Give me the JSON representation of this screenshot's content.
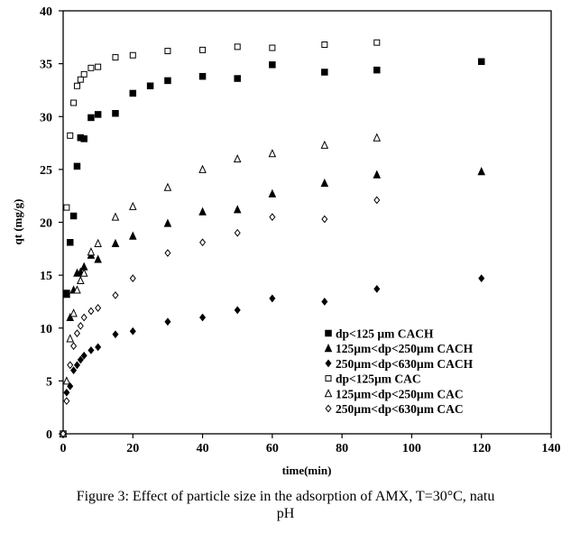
{
  "chart_data": {
    "type": "scatter",
    "title": "",
    "xlabel": "time(min)",
    "ylabel": "qt (mg/g)",
    "xlim": [
      0,
      140
    ],
    "ylim": [
      0,
      40
    ],
    "xticks": [
      "0",
      "20",
      "40",
      "60",
      "80",
      "100",
      "120",
      "140"
    ],
    "yticks": [
      "0",
      "5",
      "10",
      "15",
      "20",
      "25",
      "30",
      "35",
      "40"
    ],
    "grid": false,
    "legend_position": "bottom-right",
    "series": [
      {
        "name": "dp<125 µm CACH",
        "marker": "square-filled",
        "x": [
          0,
          1,
          2,
          3,
          4,
          5,
          6,
          8,
          10,
          15,
          20,
          25,
          30,
          40,
          50,
          60,
          75,
          90,
          120
        ],
        "y": [
          0,
          13.3,
          18.1,
          20.6,
          25.3,
          28.0,
          27.9,
          29.9,
          30.2,
          30.3,
          32.2,
          32.9,
          33.4,
          33.8,
          33.6,
          34.9,
          34.2,
          34.4,
          35.2
        ]
      },
      {
        "name": "125µm<dp<250µm CACH",
        "marker": "triangle-filled",
        "x": [
          0,
          1,
          2,
          3,
          4,
          5,
          6,
          8,
          10,
          15,
          20,
          30,
          40,
          50,
          60,
          75,
          90,
          120
        ],
        "y": [
          0,
          13.2,
          11.0,
          13.6,
          15.2,
          15.3,
          15.8,
          16.9,
          16.5,
          18.0,
          18.7,
          19.9,
          21.0,
          21.2,
          22.7,
          23.7,
          24.5,
          24.8
        ]
      },
      {
        "name": "250µm<dp<630µm CACH",
        "marker": "diamond-filled",
        "x": [
          0,
          1,
          2,
          3,
          4,
          5,
          6,
          8,
          10,
          15,
          20,
          30,
          40,
          50,
          60,
          75,
          90,
          120
        ],
        "y": [
          0,
          3.9,
          4.5,
          6.0,
          6.5,
          7.0,
          7.4,
          7.9,
          8.2,
          9.4,
          9.7,
          10.6,
          11.0,
          11.7,
          12.8,
          12.5,
          13.7,
          14.7
        ]
      },
      {
        "name": "dp<125µm CAC",
        "marker": "square-open",
        "x": [
          0,
          1,
          2,
          3,
          4,
          5,
          6,
          8,
          10,
          15,
          20,
          30,
          40,
          50,
          60,
          75,
          90
        ],
        "y": [
          0,
          21.4,
          28.2,
          31.3,
          32.9,
          33.5,
          34.0,
          34.6,
          34.7,
          35.6,
          35.8,
          36.2,
          36.3,
          36.6,
          36.5,
          36.8,
          37.0
        ]
      },
      {
        "name": "125µm<dp<250µm CAC",
        "marker": "triangle-open",
        "x": [
          0,
          1,
          2,
          3,
          4,
          5,
          6,
          8,
          10,
          15,
          20,
          30,
          40,
          50,
          60,
          75,
          90
        ],
        "y": [
          0,
          5.0,
          9.0,
          11.4,
          13.6,
          14.5,
          15.2,
          17.2,
          18.0,
          20.5,
          21.5,
          23.3,
          25.0,
          26.0,
          26.5,
          27.3,
          28.0
        ]
      },
      {
        "name": "250µm<dp<630µm CAC",
        "marker": "diamond-open",
        "x": [
          0,
          1,
          2,
          3,
          4,
          5,
          6,
          8,
          10,
          15,
          20,
          30,
          40,
          50,
          60,
          75,
          90
        ],
        "y": [
          0,
          3.1,
          6.5,
          8.3,
          9.5,
          10.2,
          11.0,
          11.6,
          11.9,
          13.1,
          14.7,
          17.1,
          18.1,
          19.0,
          20.5,
          20.3,
          22.1
        ]
      }
    ]
  },
  "caption": "Figure 3: Effect of particle size in the adsorption of AMX, T=30°C, natu\npH"
}
